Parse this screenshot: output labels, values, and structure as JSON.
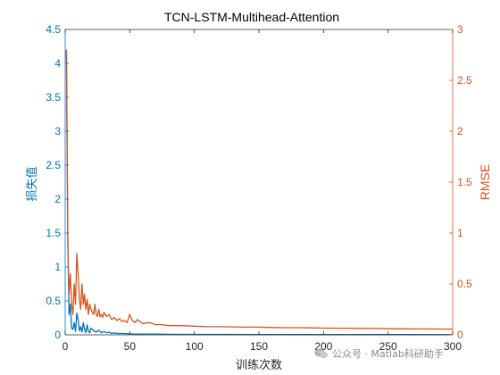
{
  "chart_data": {
    "type": "line",
    "title": "TCN-LSTM-Multihead-Attention",
    "xlabel": "训练次数",
    "xlim": [
      0,
      300
    ],
    "xticks": [
      0,
      50,
      100,
      150,
      200,
      250,
      300
    ],
    "grid": false,
    "left_axis": {
      "label": "损失值",
      "ylim": [
        0,
        4.5
      ],
      "ticks": [
        "0",
        "0.5",
        "1",
        "1.5",
        "2",
        "2.5",
        "3",
        "3.5",
        "4",
        "4.5"
      ],
      "color": "#0072BD"
    },
    "right_axis": {
      "label": "RMSE",
      "ylim": [
        0,
        3
      ],
      "ticks": [
        "0",
        "0.5",
        "1",
        "1.5",
        "2",
        "2.5",
        "3"
      ],
      "color": "#D95319"
    },
    "series": [
      {
        "axis": "left",
        "color": "#0072BD",
        "x": [
          1,
          2,
          3,
          4,
          5,
          6,
          7,
          8,
          9,
          10,
          11,
          12,
          13,
          14,
          15,
          16,
          17,
          18,
          19,
          20,
          22,
          24,
          26,
          28,
          30,
          32,
          34,
          36,
          38,
          40,
          45,
          50,
          55,
          60,
          70,
          80,
          100,
          150,
          200,
          250,
          300
        ],
        "y": [
          4.2,
          1.5,
          0.3,
          0.45,
          0.1,
          0.08,
          0.18,
          0.05,
          0.32,
          0.22,
          0.06,
          0.12,
          0.04,
          0.18,
          0.08,
          0.03,
          0.15,
          0.05,
          0.03,
          0.1,
          0.06,
          0.04,
          0.07,
          0.03,
          0.05,
          0.03,
          0.04,
          0.02,
          0.03,
          0.02,
          0.02,
          0.015,
          0.012,
          0.01,
          0.01,
          0.008,
          0.006,
          0.005,
          0.004,
          0.004,
          0.003
        ]
      },
      {
        "axis": "right",
        "color": "#D95319",
        "x": [
          1,
          2,
          3,
          4,
          5,
          6,
          7,
          8,
          9,
          10,
          11,
          12,
          13,
          14,
          15,
          16,
          17,
          18,
          19,
          20,
          21,
          22,
          23,
          24,
          25,
          26,
          27,
          28,
          29,
          30,
          32,
          34,
          36,
          38,
          40,
          42,
          44,
          46,
          48,
          50,
          52,
          54,
          56,
          58,
          60,
          65,
          70,
          75,
          80,
          90,
          100,
          110,
          120,
          130,
          140,
          150,
          160,
          170,
          180,
          190,
          200,
          210,
          220,
          230,
          240,
          250,
          260,
          270,
          280,
          290,
          300
        ],
        "y": [
          2.8,
          0.9,
          0.4,
          0.6,
          0.3,
          0.2,
          0.5,
          0.3,
          0.8,
          0.6,
          0.35,
          0.25,
          0.5,
          0.3,
          0.4,
          0.25,
          0.35,
          0.2,
          0.3,
          0.25,
          0.22,
          0.2,
          0.3,
          0.2,
          0.18,
          0.25,
          0.18,
          0.2,
          0.17,
          0.22,
          0.18,
          0.2,
          0.15,
          0.17,
          0.14,
          0.16,
          0.13,
          0.14,
          0.12,
          0.2,
          0.14,
          0.12,
          0.15,
          0.13,
          0.11,
          0.12,
          0.1,
          0.1,
          0.09,
          0.09,
          0.085,
          0.08,
          0.08,
          0.078,
          0.075,
          0.075,
          0.072,
          0.07,
          0.07,
          0.068,
          0.066,
          0.065,
          0.065,
          0.063,
          0.062,
          0.06,
          0.06,
          0.058,
          0.058,
          0.057,
          0.055
        ]
      }
    ]
  },
  "watermark": {
    "text": "公众号 · Matlab科研助手",
    "icon": "wechat-icon"
  }
}
